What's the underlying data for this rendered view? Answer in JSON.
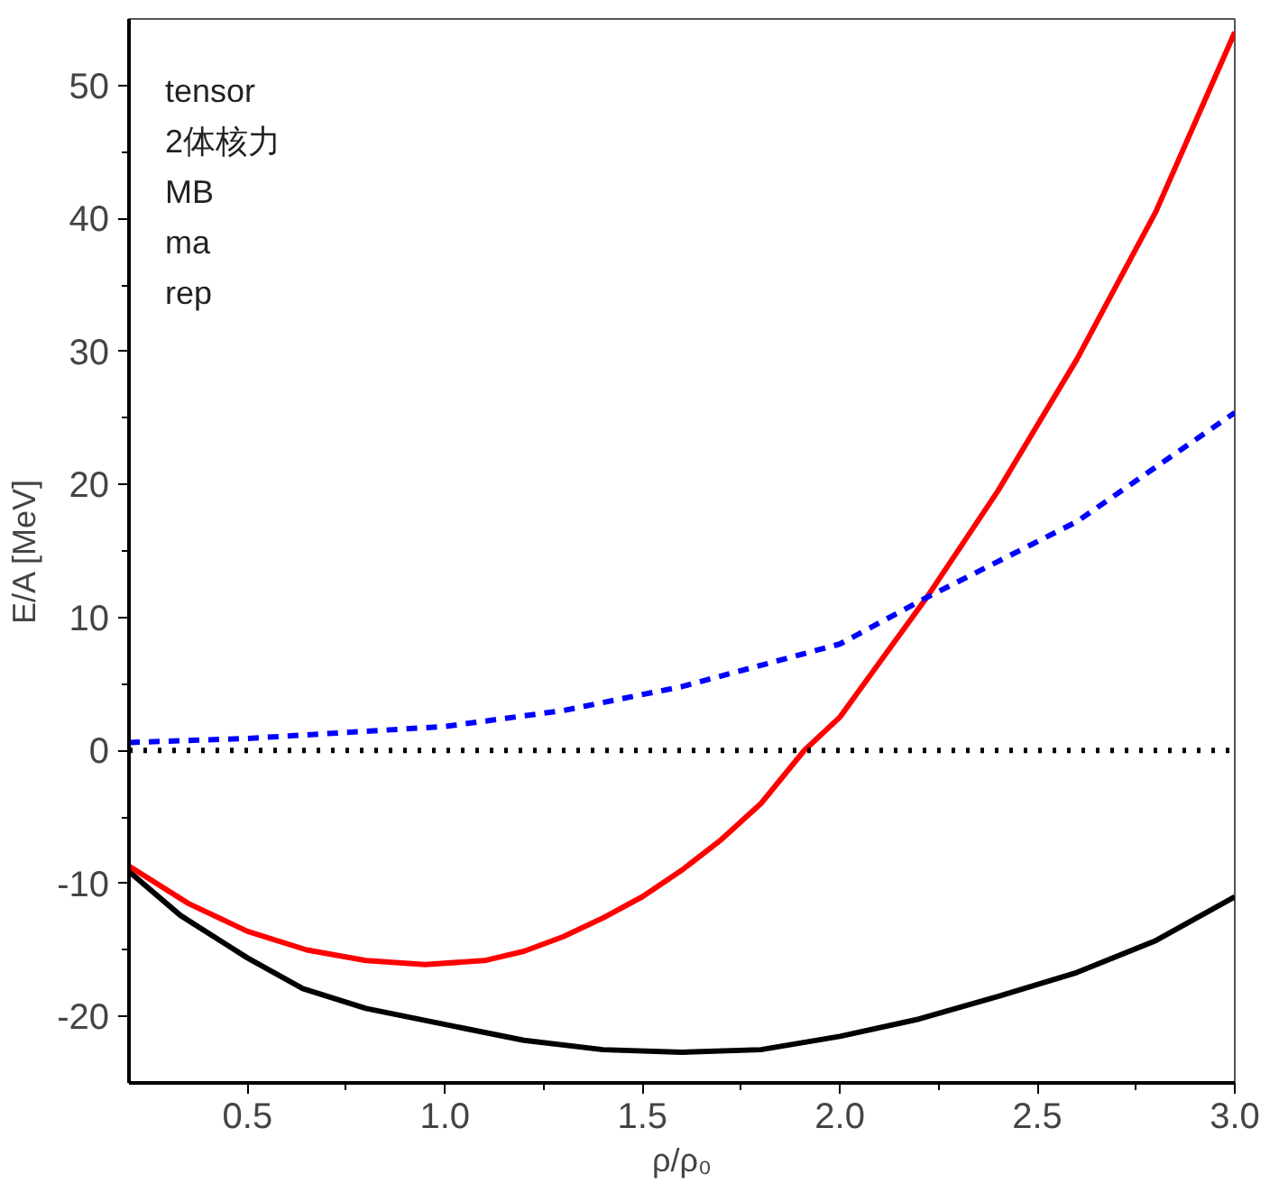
{
  "chart_data": {
    "type": "line",
    "xlabel": "ρ/ρ₀",
    "ylabel": "E/A [MeV]",
    "series": [
      {
        "color": "#000000",
        "line_style": "solid",
        "x": [
          0.2,
          0.33,
          0.5,
          0.64,
          0.8,
          1.0,
          1.2,
          1.4,
          1.6,
          1.8,
          2.0,
          2.2,
          2.4,
          2.6,
          2.8,
          3.0
        ],
        "values": [
          -9.1,
          -12.4,
          -15.6,
          -17.9,
          -19.4,
          -20.6,
          -21.8,
          -22.5,
          -22.7,
          -22.5,
          -21.5,
          -20.2,
          -18.5,
          -16.7,
          -14.3,
          -11
        ]
      },
      {
        "color": "#ff0000",
        "line_style": "solid",
        "x": [
          0.2,
          0.35,
          0.5,
          0.65,
          0.8,
          0.95,
          1.1,
          1.2,
          1.3,
          1.4,
          1.5,
          1.6,
          1.7,
          1.8,
          1.91,
          2.0,
          2.1,
          2.22,
          2.4,
          2.6,
          2.8,
          3.0
        ],
        "values": [
          -8.7,
          -11.5,
          -13.6,
          -15.0,
          -15.8,
          -16.1,
          -15.8,
          -15.1,
          -14.0,
          -12.6,
          -11,
          -9,
          -6.7,
          -4,
          0,
          2.5,
          6.6,
          11.5,
          19.5,
          29.4,
          40.5,
          54
        ]
      },
      {
        "color": "#0000ff",
        "line_style": "dashed",
        "x": [
          0.2,
          0.5,
          1.0,
          1.3,
          1.6,
          2.0,
          2.22,
          2.6,
          3.0
        ],
        "values": [
          0.6,
          0.9,
          1.8,
          3,
          4.8,
          8,
          11.5,
          17.2,
          25.4
        ]
      }
    ],
    "ref_lines": [
      {
        "axis": "y",
        "value": 0,
        "color": "#000000",
        "line_style": "dotted"
      }
    ],
    "annotations": [
      "tensor",
      "2体核力",
      "MB",
      "ma",
      "rep"
    ],
    "xlim": [
      0.2,
      3.0
    ],
    "ylim": [
      -25,
      55
    ],
    "xticks": [
      {
        "value": 0.5,
        "label": "0.5"
      },
      {
        "value": 1.0,
        "label": "1.0"
      },
      {
        "value": 1.5,
        "label": "1.5"
      },
      {
        "value": 2.0,
        "label": "2.0"
      },
      {
        "value": 2.5,
        "label": "2.5"
      },
      {
        "value": 3.0,
        "label": "3.0"
      }
    ],
    "yticks": [
      -20,
      -10,
      0,
      10,
      20,
      30,
      40,
      50
    ],
    "grid": false
  }
}
